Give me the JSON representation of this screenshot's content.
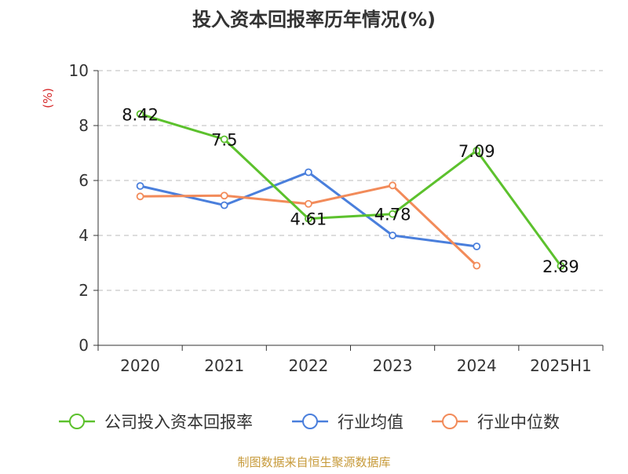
{
  "chart_data": {
    "type": "line",
    "title": "投入资本回报率历年情况(%)",
    "ylabel": "(%)",
    "xlabel": "",
    "categories": [
      "2020",
      "2021",
      "2022",
      "2023",
      "2024",
      "2025H1"
    ],
    "ylim": [
      0,
      10
    ],
    "yticks": [
      0,
      2,
      4,
      6,
      8,
      10
    ],
    "grid": true,
    "legend_position": "bottom",
    "series": [
      {
        "name": "公司投入资本回报率",
        "color": "#5cc12d",
        "values": [
          8.42,
          7.5,
          4.61,
          4.78,
          7.09,
          2.89
        ],
        "labels": [
          "8.42",
          "7.5",
          "4.61",
          "4.78",
          "7.09",
          "2.89"
        ]
      },
      {
        "name": "行业均值",
        "color": "#4a7fdc",
        "values": [
          5.8,
          5.1,
          6.3,
          4.0,
          3.6,
          null
        ]
      },
      {
        "name": "行业中位数",
        "color": "#f28b5a",
        "values": [
          5.42,
          5.45,
          5.15,
          5.82,
          2.9,
          null
        ]
      }
    ]
  },
  "footer": {
    "source": "制图数据来自恒生聚源数据库"
  },
  "colors": {
    "title": "#333333",
    "axis": "#333333",
    "grid": "#bbbbbb",
    "ylabel": "#d62728",
    "source": "#c79a3a"
  }
}
